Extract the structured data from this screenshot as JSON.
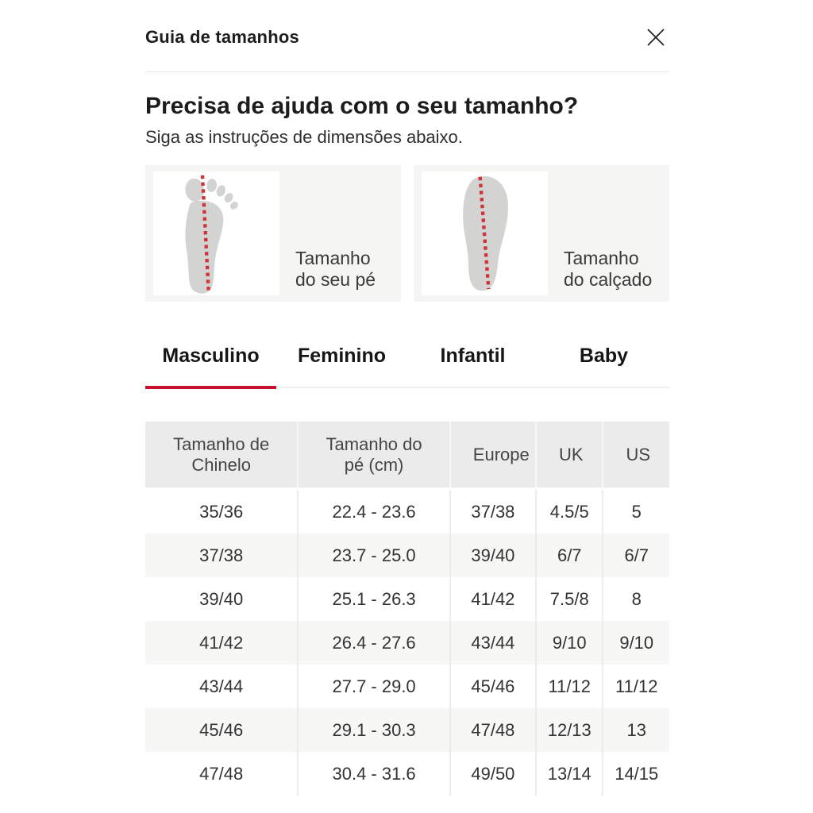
{
  "modal": {
    "title": "Guia de tamanhos"
  },
  "intro": {
    "heading": "Precisa de ajuda com o seu tamanho?",
    "subheading": "Siga as instruções de dimensões abaixo."
  },
  "figures": [
    {
      "icon": "foot-measure-icon",
      "label": "Tamanho\ndo seu pé"
    },
    {
      "icon": "sole-measure-icon",
      "label": "Tamanho\ndo calçado"
    }
  ],
  "tabs": [
    {
      "label": "Masculino",
      "active": true
    },
    {
      "label": "Feminino",
      "active": false
    },
    {
      "label": "Infantil",
      "active": false
    },
    {
      "label": "Baby",
      "active": false
    }
  ],
  "size_table": {
    "columns": [
      "Tamanho de Chinelo",
      "Tamanho do pé (cm)",
      "Europe",
      "UK",
      "US"
    ],
    "rows": [
      [
        "35/36",
        "22.4 - 23.6",
        "37/38",
        "4.5/5",
        "5"
      ],
      [
        "37/38",
        "23.7 - 25.0",
        "39/40",
        "6/7",
        "6/7"
      ],
      [
        "39/40",
        "25.1 - 26.3",
        "41/42",
        "7.5/8",
        "8"
      ],
      [
        "41/42",
        "26.4 - 27.6",
        "43/44",
        "9/10",
        "9/10"
      ],
      [
        "43/44",
        "27.7 - 29.0",
        "45/46",
        "11/12",
        "11/12"
      ],
      [
        "45/46",
        "29.1 - 30.3",
        "47/48",
        "12/13",
        "13"
      ],
      [
        "47/48",
        "30.4 - 31.6",
        "49/50",
        "13/14",
        "14/15"
      ]
    ]
  },
  "colors": {
    "accent_red": "#c8102e",
    "dotted_line_red": "#cf3339",
    "illustration_gray": "#d3d3d1"
  }
}
